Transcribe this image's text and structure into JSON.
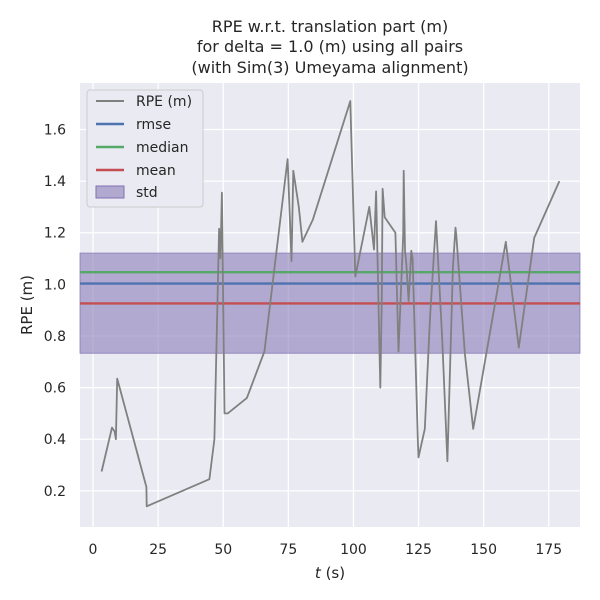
{
  "chart_data": {
    "type": "line",
    "title_lines": [
      "RPE w.r.t. translation part (m)",
      "for delta = 1.0 (m) using all pairs",
      "(with Sim(3) Umeyama alignment)"
    ],
    "xlabel_var": "t",
    "xlabel_unit": " (s)",
    "ylabel": "RPE (m)",
    "xlim": [
      -5,
      187
    ],
    "ylim": [
      0.06,
      1.78
    ],
    "xticks": [
      0,
      25,
      50,
      75,
      100,
      125,
      150,
      175
    ],
    "yticks": [
      0.2,
      0.4,
      0.6,
      0.8,
      1.0,
      1.2,
      1.4,
      1.6
    ],
    "ytick_labels": [
      "0.2",
      "0.4",
      "0.6",
      "0.8",
      "1.0",
      "1.2",
      "1.4",
      "1.6"
    ],
    "grid": true,
    "legend_position": "top-left",
    "series": [
      {
        "name": "RPE (m)",
        "color": "#808080",
        "x": [
          3.3,
          7.3,
          8.3,
          8.8,
          9.3,
          20.5,
          20.6,
          44.7,
          46.6,
          48.4,
          48.9,
          49.5,
          50.5,
          51.7,
          59.1,
          65.8,
          74.7,
          76.2,
          76.9,
          79.0,
          80.4,
          84.4,
          98.8,
          100.7,
          106.1,
          107.9,
          108.7,
          110.3,
          110.9,
          111.2,
          112.0,
          116.1,
          117.3,
          119.1,
          119.3,
          119.8,
          120.3,
          121.2,
          122.2,
          122.7,
          124.7,
          125.0,
          127.4,
          129.4,
          131.7,
          134.1,
          136.1,
          138.2,
          139.2,
          139.5,
          142.8,
          146.0,
          158.5,
          163.5,
          169.4,
          179.1
        ],
        "y": [
          0.275,
          0.445,
          0.43,
          0.4,
          0.635,
          0.215,
          0.14,
          0.245,
          0.4,
          1.215,
          1.1,
          1.355,
          0.5,
          0.5,
          0.56,
          0.74,
          1.485,
          1.09,
          1.44,
          1.3,
          1.165,
          1.25,
          1.71,
          1.03,
          1.3,
          1.135,
          1.36,
          0.6,
          0.95,
          1.37,
          1.26,
          1.2,
          0.74,
          1.19,
          1.44,
          1.13,
          1.08,
          0.935,
          1.13,
          1.1,
          0.4,
          0.33,
          0.44,
          0.87,
          1.245,
          0.79,
          0.315,
          1.065,
          1.22,
          1.19,
          0.73,
          0.44,
          1.165,
          0.755,
          1.18,
          1.4
        ]
      },
      {
        "name": "rmse",
        "type": "hline",
        "value": 1.003,
        "color": "#4c72b0"
      },
      {
        "name": "median",
        "type": "hline",
        "value": 1.047,
        "color": "#55a868"
      },
      {
        "name": "mean",
        "type": "hline",
        "value": 0.926,
        "color": "#c44e52"
      },
      {
        "name": "std",
        "type": "band",
        "range": [
          0.733,
          1.121
        ],
        "color": "#8172b3"
      }
    ],
    "colors": {
      "axes_bg": "#eaeaf2",
      "grid": "#ffffff",
      "text": "#262626",
      "std_fill": "rgba(129,114,179,0.55)"
    }
  }
}
